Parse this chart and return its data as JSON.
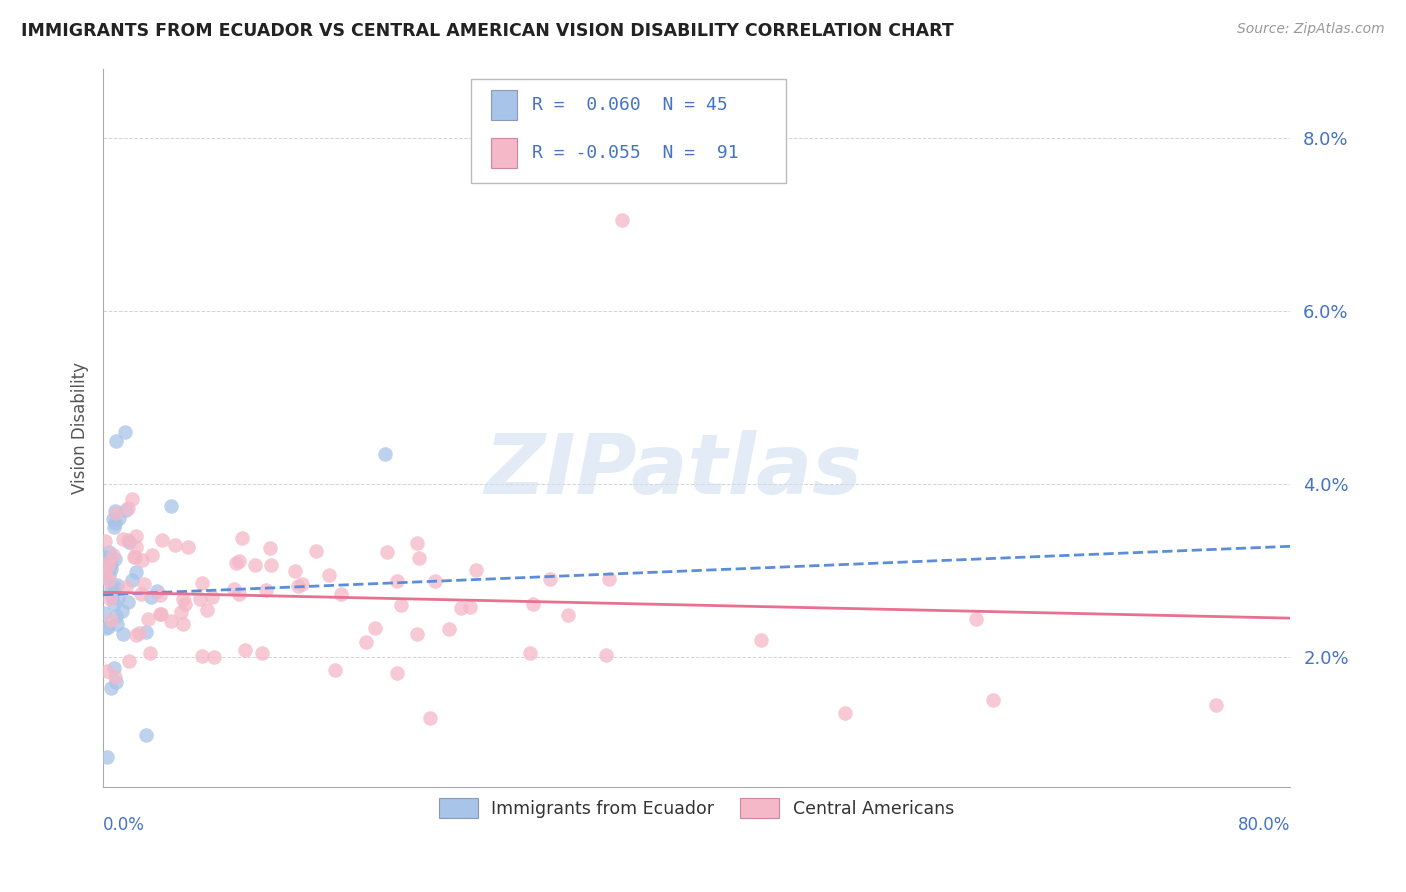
{
  "title": "IMMIGRANTS FROM ECUADOR VS CENTRAL AMERICAN VISION DISABILITY CORRELATION CHART",
  "source": "Source: ZipAtlas.com",
  "ylabel": "Vision Disability",
  "xlim": [
    0.0,
    80.0
  ],
  "ylim": [
    0.5,
    8.8
  ],
  "ytick_vals": [
    2.0,
    4.0,
    6.0,
    8.0
  ],
  "ytick_labels": [
    "2.0%",
    "4.0%",
    "6.0%",
    "8.0%"
  ],
  "watermark": "ZIPatlas",
  "series1_label": "Immigrants from Ecuador",
  "series2_label": "Central Americans",
  "color_blue": "#a8c4e8",
  "color_pink": "#f4b8c8",
  "color_blue_line": "#5b8dd9",
  "color_pink_line": "#e87090",
  "color_blue_text": "#4472c4",
  "background": "#ffffff",
  "grid_color": "#d0d0d0",
  "trendline1_x0": 0.0,
  "trendline1_y0": 2.72,
  "trendline1_x1": 80.0,
  "trendline1_y1": 3.28,
  "trendline2_x0": 0.0,
  "trendline2_y0": 2.75,
  "trendline2_x1": 80.0,
  "trendline2_y1": 2.45
}
